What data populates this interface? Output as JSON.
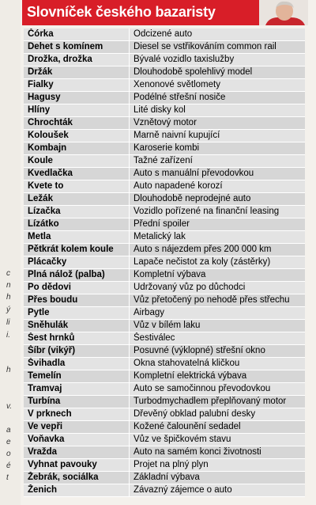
{
  "header": {
    "title": "Slovníček českého bazaristy"
  },
  "side_fragments": [
    "c",
    "n",
    "h",
    "ý",
    "li",
    "i.",
    "h",
    "v.",
    "a",
    "e",
    "o",
    "é",
    "t"
  ],
  "table": {
    "rows": [
      [
        "Čórka",
        "Odcizené auto"
      ],
      [
        "Dehet s komínem",
        "Diesel se vstřikováním common rail"
      ],
      [
        "Drožka, drožka",
        "Bývalé vozidlo taxislužby"
      ],
      [
        "Držák",
        "Dlouhodobě spolehlivý model"
      ],
      [
        "Fialky",
        "Xenonové světlomety"
      ],
      [
        "Hagusy",
        "Podélné střešní nosiče"
      ],
      [
        "Hlíny",
        "Lité disky kol"
      ],
      [
        "Chrochták",
        "Vznětový motor"
      ],
      [
        "Koloušek",
        "Marně naivní kupující"
      ],
      [
        "Kombajn",
        "Karoserie kombi"
      ],
      [
        "Koule",
        "Tažné zařízení"
      ],
      [
        "Kvedlačka",
        "Auto s manuální převodovkou"
      ],
      [
        "Kvete to",
        "Auto napadené korozí"
      ],
      [
        "Ležák",
        "Dlouhodobě neprodejné auto"
      ],
      [
        "Lízačka",
        "Vozidlo pořízené na finanční leasing"
      ],
      [
        "Lízátko",
        "Přední spoiler"
      ],
      [
        "Metla",
        "Metalický lak"
      ],
      [
        "Pětkrát kolem koule",
        "Auto s nájezdem přes 200 000 km"
      ],
      [
        "Plácačky",
        "Lapače nečistot za koly (zástěrky)"
      ],
      [
        "Plná nálož (palba)",
        "Kompletní výbava"
      ],
      [
        "Po dědovi",
        "Udržovaný vůz po důchodci"
      ],
      [
        "Přes boudu",
        "Vůz přetočený po nehodě přes střechu"
      ],
      [
        "Pytle",
        "Airbagy"
      ],
      [
        "Sněhulák",
        "Vůz v bílém laku"
      ],
      [
        "Šest hrnků",
        "Šestiválec"
      ],
      [
        "Šíbr (vikýř)",
        "Posuvné (výklopné) střešní okno"
      ],
      [
        "Švihadla",
        "Okna stahovatelná kličkou"
      ],
      [
        "Temelín",
        "Kompletní elektrická výbava"
      ],
      [
        "Tramvaj",
        "Auto se samočinnou převodovkou"
      ],
      [
        "Turbína",
        "Turbodmychadlem přeplňovaný motor"
      ],
      [
        "V prknech",
        "Dřevěný obklad palubní desky"
      ],
      [
        "Ve vepři",
        "Kožené čalounění sedadel"
      ],
      [
        "Voňavka",
        "Vůz ve špičkovém stavu"
      ],
      [
        "Vražda",
        "Auto na samém konci životnosti"
      ],
      [
        "Vyhnat pavouky",
        "Projet na plný plyn"
      ],
      [
        "Žebrák, sociálka",
        "Základní výbava"
      ],
      [
        "Ženich",
        "Závazný zájemce o auto"
      ]
    ]
  }
}
